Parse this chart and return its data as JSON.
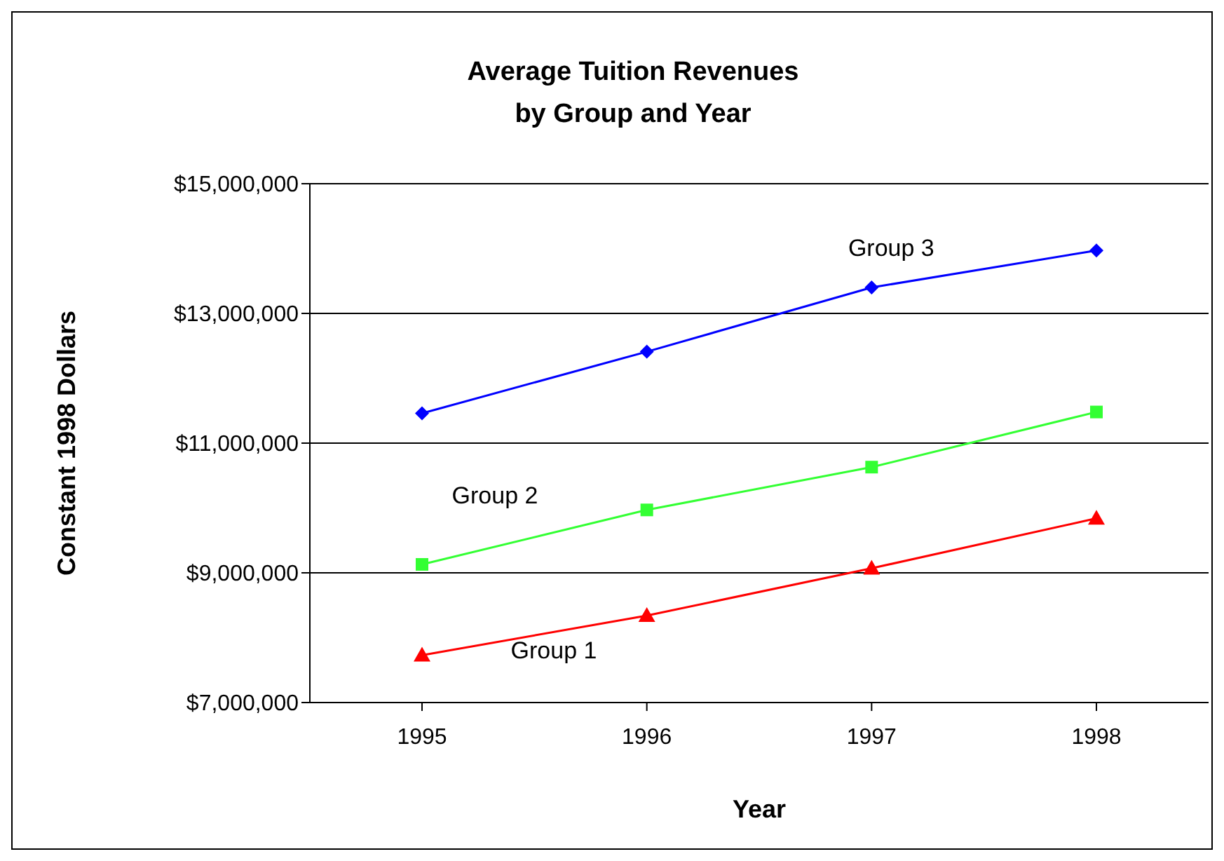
{
  "chart_data": {
    "type": "line",
    "title": "Average Tuition Revenues\nby Group and Year",
    "xlabel": "Year",
    "ylabel": "Constant 1998 Dollars",
    "categories": [
      "1995",
      "1996",
      "1997",
      "1998"
    ],
    "series": [
      {
        "name": "Group 3",
        "color": "#0000ff",
        "marker": "diamond",
        "values": [
          11460000,
          12410000,
          13400000,
          13970000
        ]
      },
      {
        "name": "Group 2",
        "color": "#33ff33",
        "marker": "square",
        "values": [
          9130000,
          9970000,
          10630000,
          11480000
        ]
      },
      {
        "name": "Group 1",
        "color": "#ff0000",
        "marker": "triangle",
        "values": [
          7730000,
          8340000,
          9070000,
          9840000
        ]
      }
    ],
    "ylim": [
      7000000,
      15000000
    ],
    "yticks": [
      {
        "value": 7000000,
        "label": "$7,000,000"
      },
      {
        "value": 9000000,
        "label": "$9,000,000"
      },
      {
        "value": 11000000,
        "label": "$11,000,000"
      },
      {
        "value": 13000000,
        "label": "$13,000,000"
      },
      {
        "value": 15000000,
        "label": "$15,000,000"
      }
    ],
    "grid": "y",
    "legend": false
  }
}
